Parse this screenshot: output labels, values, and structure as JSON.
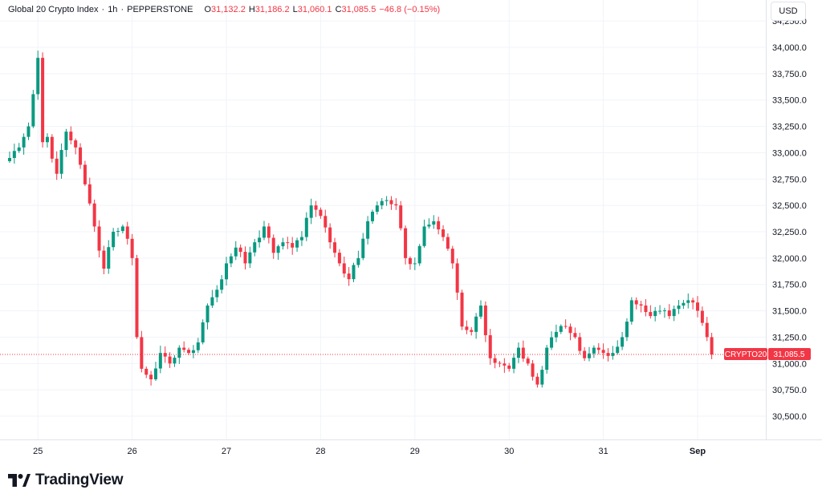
{
  "header": {
    "symbol_name": "Global 20 Crypto Index",
    "interval": "1h",
    "exchange": "PEPPERSTONE",
    "open_label": "O",
    "open_value": "31,132.2",
    "high_label": "H",
    "high_value": "31,186.2",
    "low_label": "L",
    "low_value": "31,060.1",
    "close_label": "C",
    "close_value": "31,085.5",
    "change": "−46.8 (−0.15%)"
  },
  "currency_button": "USD",
  "price_tag": {
    "symbol": "CRYPTO20",
    "value": "31,085.5"
  },
  "brand": {
    "name": "TradingView",
    "logo": "tradingview-logo-icon"
  },
  "colors": {
    "up": "#089981",
    "down": "#f23645",
    "grid": "#f0f3fa",
    "text": "#131722"
  },
  "chart_data": {
    "type": "candlestick",
    "interval": "1h",
    "y_axis": {
      "side": "right",
      "ylim": [
        30350,
        34300
      ],
      "ticks": [
        30500,
        30750,
        31000,
        31250,
        31500,
        31750,
        32000,
        32250,
        32500,
        32750,
        33000,
        33250,
        33500,
        33750,
        34000,
        34250
      ],
      "tick_labels": [
        "30,500.0",
        "30,750.0",
        "31,000.0",
        "31,250.0",
        "31,500.0",
        "31,750.0",
        "32,000.0",
        "32,250.0",
        "32,500.0",
        "32,750.0",
        "33,000.0",
        "33,250.0",
        "33,500.0",
        "33,750.0",
        "34,000.0",
        "34,250.0"
      ]
    },
    "x_axis": {
      "ticks": [
        "25",
        "26",
        "27",
        "28",
        "29",
        "30",
        "31",
        "Sep"
      ],
      "tick_candle_index": [
        6,
        26,
        46,
        66,
        86,
        106,
        126,
        146
      ]
    },
    "last_price": 31085.5,
    "grid": true,
    "keypoints": [
      [
        0,
        32950
      ],
      [
        2,
        33050
      ],
      [
        4,
        33250
      ],
      [
        6,
        33900
      ],
      [
        7,
        33100
      ],
      [
        8,
        33150
      ],
      [
        10,
        32800
      ],
      [
        12,
        33200
      ],
      [
        14,
        33050
      ],
      [
        16,
        32700
      ],
      [
        18,
        32300
      ],
      [
        20,
        31900
      ],
      [
        22,
        32250
      ],
      [
        24,
        32300
      ],
      [
        26,
        32000
      ],
      [
        27,
        31250
      ],
      [
        28,
        30950
      ],
      [
        30,
        30850
      ],
      [
        32,
        31100
      ],
      [
        34,
        31000
      ],
      [
        36,
        31150
      ],
      [
        38,
        31100
      ],
      [
        40,
        31200
      ],
      [
        42,
        31550
      ],
      [
        44,
        31700
      ],
      [
        46,
        31950
      ],
      [
        48,
        32100
      ],
      [
        50,
        31950
      ],
      [
        52,
        32150
      ],
      [
        54,
        32300
      ],
      [
        56,
        32050
      ],
      [
        58,
        32150
      ],
      [
        60,
        32100
      ],
      [
        62,
        32200
      ],
      [
        64,
        32500
      ],
      [
        66,
        32400
      ],
      [
        68,
        32150
      ],
      [
        70,
        31950
      ],
      [
        72,
        31800
      ],
      [
        74,
        32000
      ],
      [
        76,
        32350
      ],
      [
        78,
        32500
      ],
      [
        80,
        32550
      ],
      [
        82,
        32500
      ],
      [
        84,
        32000
      ],
      [
        86,
        31950
      ],
      [
        88,
        32300
      ],
      [
        90,
        32350
      ],
      [
        92,
        32200
      ],
      [
        94,
        31950
      ],
      [
        96,
        31350
      ],
      [
        98,
        31300
      ],
      [
        100,
        31550
      ],
      [
        102,
        31050
      ],
      [
        104,
        31000
      ],
      [
        106,
        30950
      ],
      [
        108,
        31150
      ],
      [
        110,
        31000
      ],
      [
        112,
        30800
      ],
      [
        114,
        31150
      ],
      [
        116,
        31300
      ],
      [
        118,
        31350
      ],
      [
        120,
        31250
      ],
      [
        122,
        31050
      ],
      [
        124,
        31150
      ],
      [
        126,
        31100
      ],
      [
        128,
        31100
      ],
      [
        130,
        31250
      ],
      [
        132,
        31600
      ],
      [
        134,
        31550
      ],
      [
        136,
        31450
      ],
      [
        138,
        31500
      ],
      [
        140,
        31450
      ],
      [
        142,
        31550
      ],
      [
        144,
        31600
      ],
      [
        146,
        31500
      ],
      [
        148,
        31250
      ],
      [
        149,
        31085.5
      ]
    ]
  }
}
